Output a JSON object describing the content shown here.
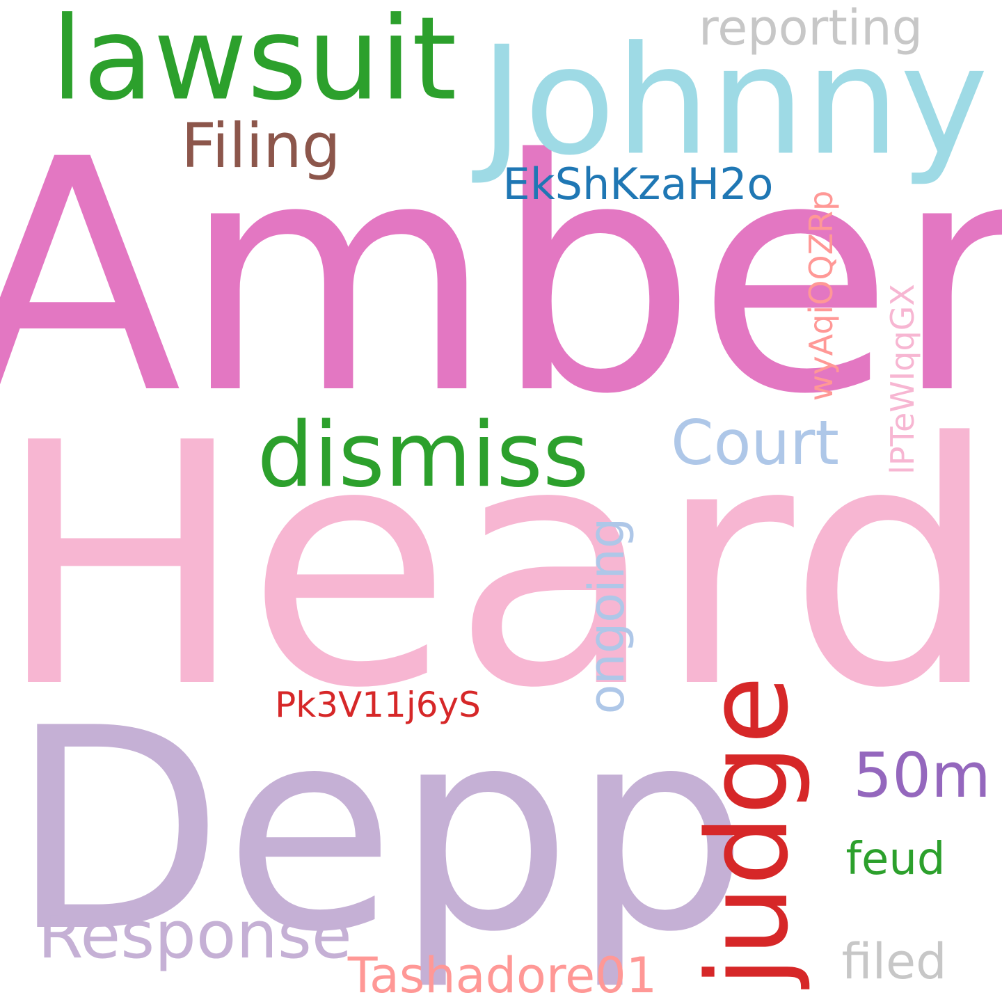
{
  "words": [
    {
      "text": "Amber",
      "color": "#e377c2",
      "orientation": "horizontal"
    },
    {
      "text": "Heard",
      "color": "#f7b6d2",
      "orientation": "horizontal"
    },
    {
      "text": "Depp",
      "color": "#c5b0d5",
      "orientation": "horizontal"
    },
    {
      "text": "Johnny",
      "color": "#9edae5",
      "orientation": "horizontal"
    },
    {
      "text": "lawsuit",
      "color": "#2ca02c",
      "orientation": "horizontal"
    },
    {
      "text": "judge",
      "color": "#d62728",
      "orientation": "vertical"
    },
    {
      "text": "dismiss",
      "color": "#2ca02c",
      "orientation": "horizontal"
    },
    {
      "text": "Response",
      "color": "#c5b0d5",
      "orientation": "horizontal"
    },
    {
      "text": "Filing",
      "color": "#8c564b",
      "orientation": "horizontal"
    },
    {
      "text": "Court",
      "color": "#aec7e8",
      "orientation": "horizontal"
    },
    {
      "text": "reporting",
      "color": "#c7c7c7",
      "orientation": "horizontal"
    },
    {
      "text": "50m",
      "color": "#9467bd",
      "orientation": "horizontal"
    },
    {
      "text": "ongoing",
      "color": "#aec7e8",
      "orientation": "vertical"
    },
    {
      "text": "Tashadore01",
      "color": "#ff9896",
      "orientation": "horizontal"
    },
    {
      "text": "filed",
      "color": "#c7c7c7",
      "orientation": "horizontal"
    },
    {
      "text": "EkShKzaH2o",
      "color": "#1f77b4",
      "orientation": "horizontal"
    },
    {
      "text": "feud",
      "color": "#2ca02c",
      "orientation": "horizontal"
    },
    {
      "text": "wyAqiOQZRp",
      "color": "#ff9896",
      "orientation": "vertical"
    },
    {
      "text": "lPTeWIqqGX",
      "color": "#f7b6d2",
      "orientation": "vertical"
    },
    {
      "text": "Pk3V11j6yS",
      "color": "#d62728",
      "orientation": "horizontal"
    }
  ]
}
